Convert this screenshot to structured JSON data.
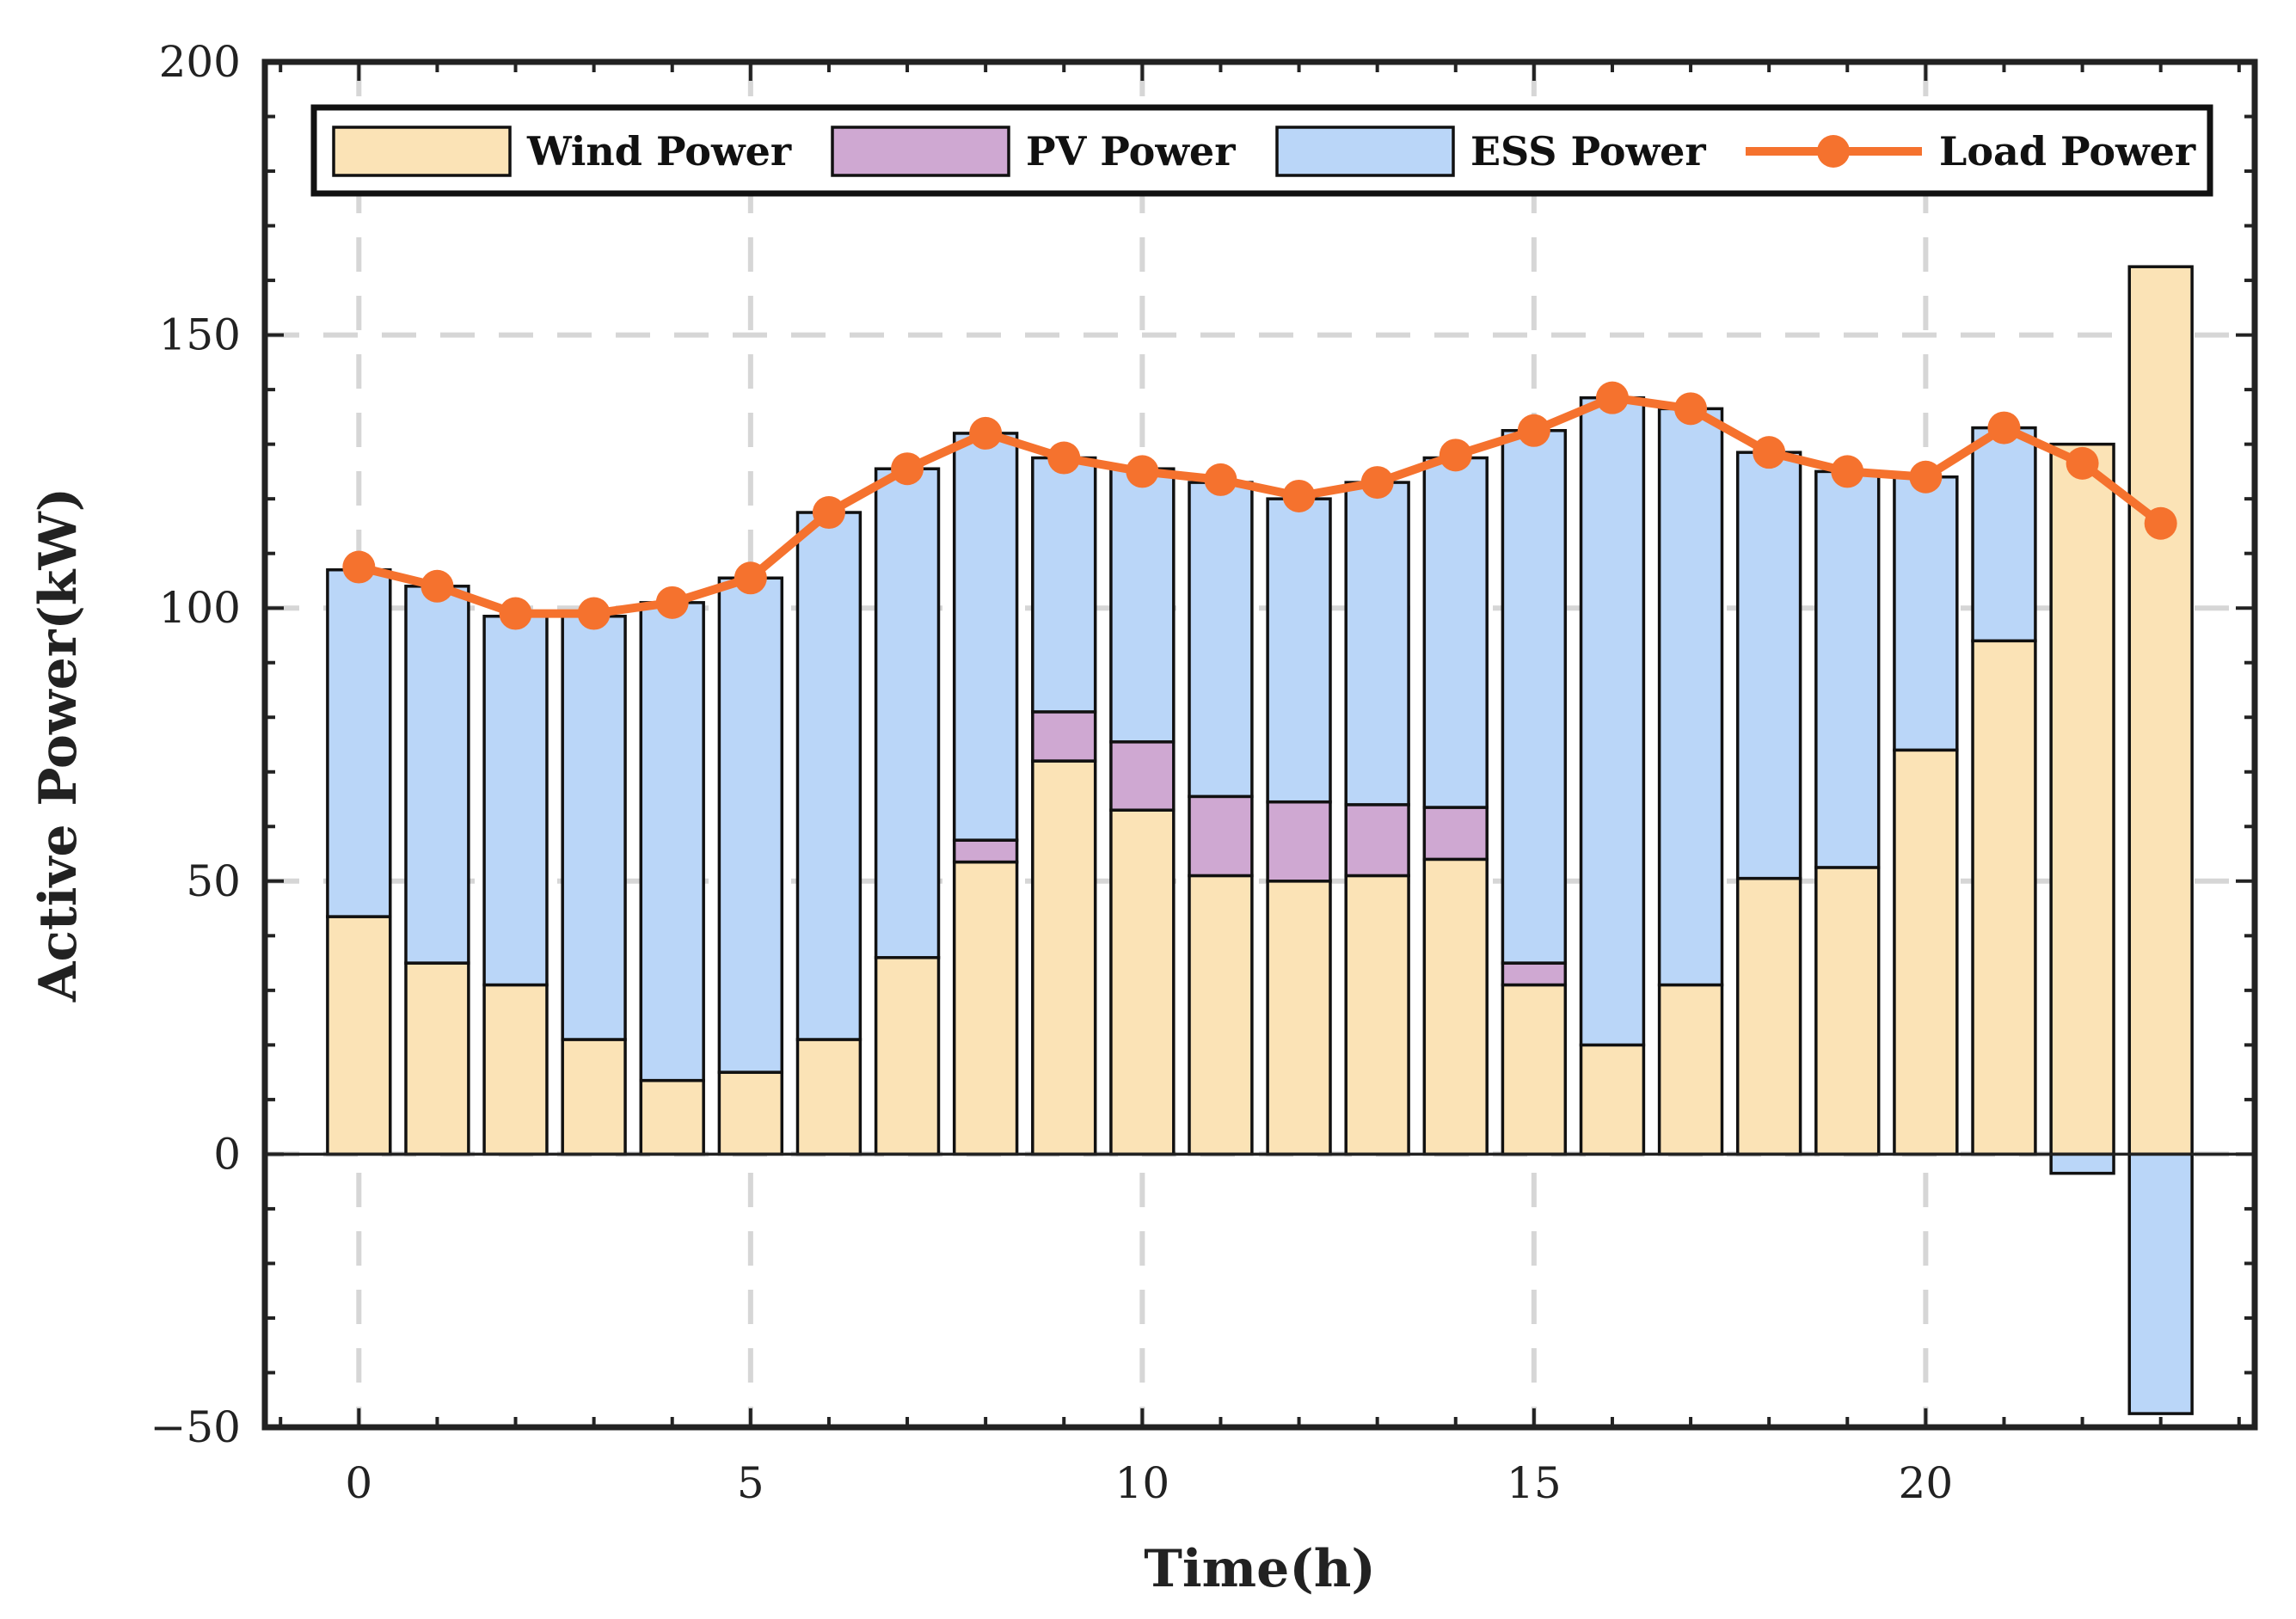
{
  "chart_data": {
    "type": "bar",
    "subtype": "stacked bar with line overlay",
    "title": "",
    "xlabel": "Time(h)",
    "ylabel": "Active Power(kW)",
    "xlim": [
      -1.2,
      24.2
    ],
    "ylim": [
      -50,
      200
    ],
    "x_ticks": [
      0,
      5,
      10,
      15,
      20
    ],
    "y_ticks": [
      -50,
      0,
      50,
      100,
      150,
      200
    ],
    "x_tick_labels": [
      "0",
      "5",
      "10",
      "15",
      "20"
    ],
    "y_tick_labels": [
      "−50",
      "0",
      "50",
      "100",
      "150",
      "200"
    ],
    "grid": true,
    "legend_position": "top",
    "x": [
      0,
      1,
      2,
      3,
      4,
      5,
      6,
      7,
      8,
      9,
      10,
      11,
      12,
      13,
      14,
      15,
      16,
      17,
      18,
      19,
      20,
      21,
      22,
      23
    ],
    "series": [
      {
        "name": "Wind Power",
        "kind": "bar",
        "color": "#fbe3b6",
        "values": [
          43.5,
          35,
          31,
          21,
          13.5,
          15,
          21,
          36,
          53.5,
          72,
          63,
          51,
          50,
          51,
          54,
          31,
          20,
          31,
          50.5,
          52.5,
          74,
          94,
          130,
          162.5
        ]
      },
      {
        "name": "PV Power",
        "kind": "bar",
        "color": "#cfa8d2",
        "values": [
          0,
          0,
          0,
          0,
          0,
          0,
          0,
          0,
          4,
          9,
          12.5,
          14.5,
          14.5,
          13,
          9.5,
          4,
          0,
          0,
          0,
          0,
          0,
          0,
          0,
          0
        ]
      },
      {
        "name": "ESS Power",
        "kind": "bar",
        "color": "#bad6f8",
        "values": [
          63.5,
          69,
          67.5,
          77.5,
          87.5,
          90.5,
          96.5,
          89.5,
          74.5,
          46.5,
          50,
          57.5,
          55.5,
          59,
          64,
          97.5,
          118.5,
          105.5,
          78,
          72.5,
          50,
          39,
          -3.5,
          -47.5
        ]
      },
      {
        "name": "Load Power",
        "kind": "line",
        "color": "#f5722e",
        "values": [
          107.5,
          104,
          99,
          99,
          101,
          105.5,
          117.5,
          125.5,
          132,
          127.5,
          125,
          123.5,
          120.5,
          123,
          128,
          132.5,
          138.5,
          136.5,
          128.5,
          125,
          124,
          133,
          126.5,
          115.5
        ]
      }
    ]
  }
}
